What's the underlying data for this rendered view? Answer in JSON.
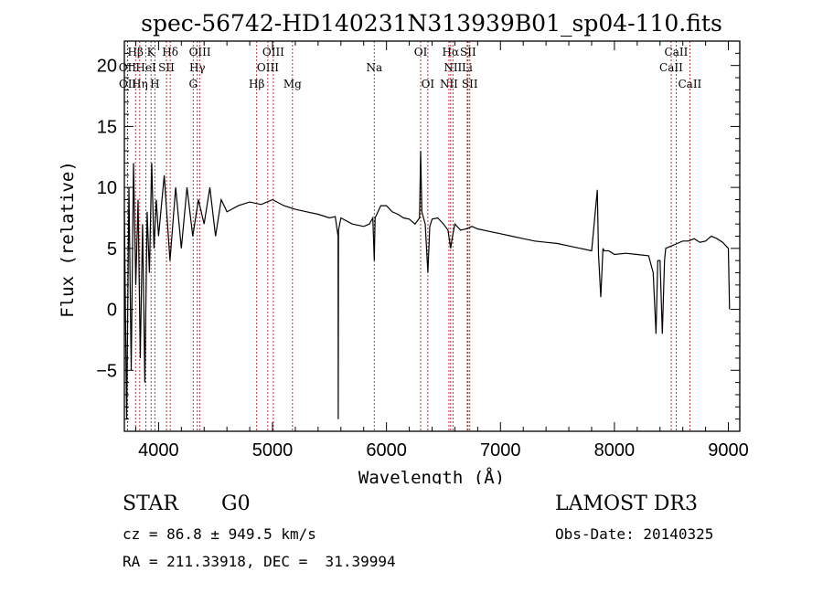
{
  "chart_data": {
    "type": "line",
    "title": "spec-56742-HD140231N313939B01_sp04-110.fits",
    "xlabel": "Wavelength (Å)",
    "ylabel": "Flux (relative)",
    "xlim": [
      3700,
      9100
    ],
    "ylim": [
      -10,
      22
    ],
    "xticks": [
      4000,
      5000,
      6000,
      7000,
      8000,
      9000
    ],
    "yticks": [
      -5,
      0,
      5,
      10,
      15,
      20
    ],
    "yticklabels": [
      "−5",
      "0",
      "5",
      "10",
      "15",
      "20"
    ],
    "grid": false,
    "series": [
      {
        "name": "flux",
        "x": [
          3700,
          3720,
          3740,
          3760,
          3780,
          3800,
          3820,
          3840,
          3860,
          3880,
          3900,
          3920,
          3940,
          3960,
          3980,
          4000,
          4050,
          4100,
          4150,
          4200,
          4250,
          4300,
          4350,
          4400,
          4450,
          4500,
          4550,
          4600,
          4700,
          4800,
          4900,
          5000,
          5100,
          5200,
          5300,
          5400,
          5500,
          5550,
          5575,
          5577,
          5579,
          5600,
          5700,
          5800,
          5850,
          5880,
          5893,
          5900,
          5950,
          6000,
          6050,
          6100,
          6150,
          6200,
          6250,
          6290,
          6300,
          6310,
          6340,
          6363,
          6380,
          6400,
          6450,
          6500,
          6540,
          6563,
          6580,
          6600,
          6650,
          6700,
          6750,
          6800,
          6900,
          7000,
          7100,
          7200,
          7300,
          7400,
          7500,
          7600,
          7700,
          7800,
          7850,
          7860,
          7880,
          7900,
          7910,
          7950,
          8000,
          8100,
          8200,
          8300,
          8340,
          8365,
          8380,
          8400,
          8420,
          8440,
          8450,
          8500,
          8550,
          8600,
          8650,
          8700,
          8750,
          8800,
          8850,
          8900,
          8950,
          9000,
          9010
        ],
        "y": [
          8,
          -9,
          10,
          -5,
          12,
          2,
          9,
          -4,
          7,
          -6,
          8,
          3,
          12,
          5,
          9,
          6,
          11,
          4,
          10,
          5,
          10,
          6,
          9,
          7,
          10,
          6,
          9,
          8,
          8.5,
          8.8,
          8.6,
          9,
          8.5,
          8.2,
          8,
          7.8,
          7.5,
          7.6,
          6,
          -9,
          6.5,
          7.5,
          7,
          6.8,
          7,
          7.5,
          4,
          7.5,
          8.5,
          8.5,
          8,
          7.8,
          7.5,
          7.4,
          7,
          7.5,
          13,
          8,
          7,
          3,
          6.8,
          7.4,
          7.5,
          7,
          6.5,
          5,
          6,
          7,
          6.5,
          6.6,
          6.8,
          6.6,
          6.4,
          6.2,
          6,
          5.8,
          5.6,
          5.5,
          5.4,
          5.2,
          5,
          4.8,
          9.8,
          4.5,
          1,
          5,
          4.8,
          4.8,
          4.5,
          4.6,
          4.5,
          4.4,
          3,
          -2,
          4,
          4,
          -2,
          4,
          5,
          5.2,
          5.4,
          5.6,
          5.6,
          5.8,
          5.5,
          5.6,
          6,
          5.8,
          5.5,
          5,
          0
        ]
      }
    ],
    "lines": [
      {
        "name": "Hβ",
        "wl": 3798,
        "label": "Hβ",
        "row": 1
      },
      {
        "name": "OII",
        "wl": 3727,
        "label": "OII",
        "row": 2
      },
      {
        "name": "OII",
        "wl": 3729,
        "label": "OII",
        "row": 3
      },
      {
        "name": "Hη",
        "wl": 3835,
        "label": "Hη",
        "row": 3
      },
      {
        "name": "K",
        "wl": 3934,
        "label": "K",
        "row": 1
      },
      {
        "name": "HeI",
        "wl": 3889,
        "label": "HeI",
        "row": 2
      },
      {
        "name": "SII",
        "wl": 4069,
        "label": "SII",
        "row": 2
      },
      {
        "name": "H",
        "wl": 3968,
        "label": "H",
        "row": 3
      },
      {
        "name": "Hδ",
        "wl": 4102,
        "label": "Hδ",
        "row": 1
      },
      {
        "name": "OIII",
        "wl": 4363,
        "label": "OIII",
        "row": 1
      },
      {
        "name": "Hγ",
        "wl": 4340,
        "label": "Hγ",
        "row": 2
      },
      {
        "name": "G",
        "wl": 4304,
        "label": "G",
        "row": 3
      },
      {
        "name": "OIII",
        "wl": 5007,
        "label": "OIII",
        "row": 1
      },
      {
        "name": "OIII",
        "wl": 4959,
        "label": "OIII",
        "row": 2
      },
      {
        "name": "Hβ",
        "wl": 4861,
        "label": "Hβ",
        "row": 3
      },
      {
        "name": "Mg",
        "wl": 5175,
        "label": "Mg",
        "row": 3
      },
      {
        "name": "Na",
        "wl": 5893,
        "label": "Na",
        "row": 2
      },
      {
        "name": "OI",
        "wl": 6300,
        "label": "OI",
        "row": 1
      },
      {
        "name": "OI",
        "wl": 6363,
        "label": "OI",
        "row": 3
      },
      {
        "name": "Hα",
        "wl": 6563,
        "label": "Hα",
        "row": 1
      },
      {
        "name": "SII",
        "wl": 6716,
        "label": "SII",
        "row": 1
      },
      {
        "name": "NII",
        "wl": 6583,
        "label": "NII",
        "row": 2
      },
      {
        "name": "Li",
        "wl": 6708,
        "label": "Li",
        "row": 2
      },
      {
        "name": "NII",
        "wl": 6548,
        "label": "NII",
        "row": 3
      },
      {
        "name": "SII",
        "wl": 6731,
        "label": "SII",
        "row": 3
      },
      {
        "name": "CaII",
        "wl": 8542,
        "label": "CaII",
        "row": 1
      },
      {
        "name": "CaII",
        "wl": 8498,
        "label": "CaII",
        "row": 2
      },
      {
        "name": "CaII",
        "wl": 8662,
        "label": "CaII",
        "row": 3
      }
    ]
  },
  "info": {
    "class": "STAR",
    "subclass": "G0",
    "survey": "LAMOST DR3",
    "cz": "cz = 86.8 ± 949.5 km/s",
    "obs_date": "Obs-Date: 20140325",
    "radec": "RA = 211.33918, DEC =  31.39994"
  },
  "colors": {
    "axis": "#000000",
    "spectrum": "#000000",
    "line_marker": "#b22222"
  }
}
